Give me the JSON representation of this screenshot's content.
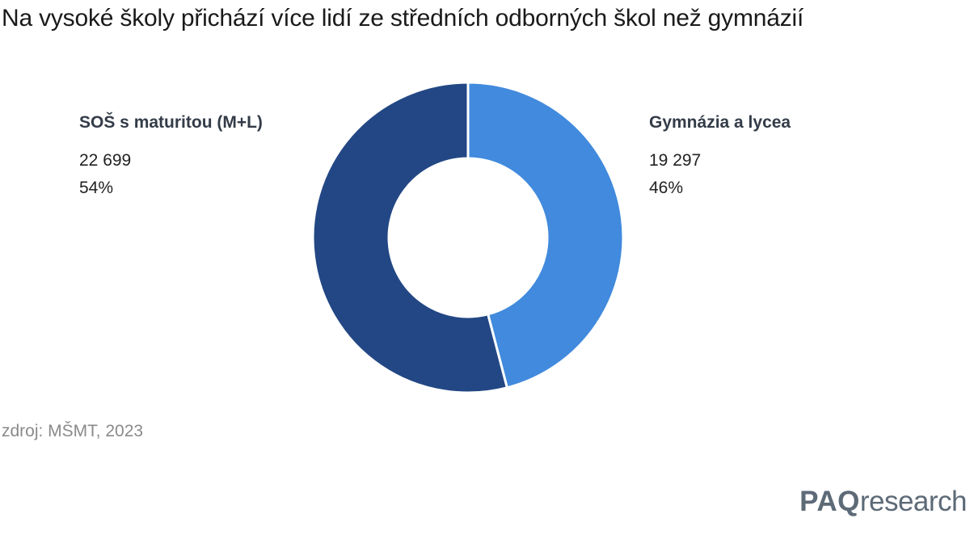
{
  "title": "Na vysoké školy přichází více lidí ze středních odborných škol než gymnázií",
  "source": "zdroj: MŠMT, 2023",
  "logo": {
    "bold": "PAQ",
    "light": "research"
  },
  "colors": {
    "dark": "#224784",
    "light": "#418add",
    "separator": "#ffffff"
  },
  "chart_data": {
    "type": "pie",
    "donut": true,
    "title": "Na vysoké školy přichází více lidí ze středních odborných škol než gymnázií",
    "slices": [
      {
        "label": "Gymnázia a lycea",
        "value": 19297,
        "value_text": "19 297",
        "percent": "46%",
        "color": "#418add"
      },
      {
        "label": "SOŠ s maturitou (M+L)",
        "value": 22699,
        "value_text": "22 699",
        "percent": "54%",
        "color": "#224784"
      }
    ]
  }
}
